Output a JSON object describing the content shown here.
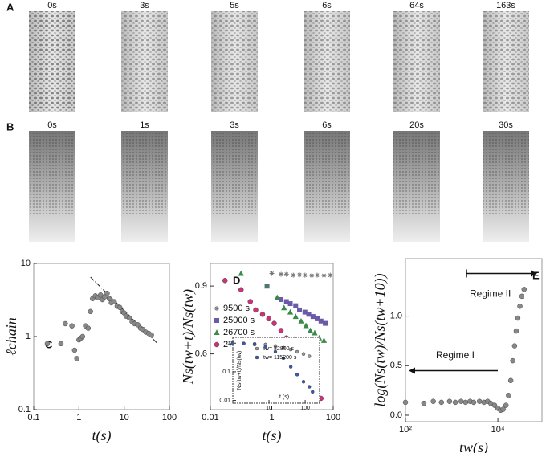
{
  "image_rows": [
    {
      "label": "A",
      "frames": [
        "0s",
        "3s",
        "5s",
        "6s",
        "64s",
        "163s"
      ]
    },
    {
      "label": "B",
      "frames": [
        "0s",
        "1s",
        "3s",
        "6s",
        "20s",
        "30s"
      ]
    }
  ],
  "chart_data": [
    {
      "type": "scatter",
      "panel": "C",
      "xlabel": "t(s)",
      "ylabel": "ℓchain",
      "xscale": "log",
      "yscale": "log",
      "xlim": [
        0.1,
        100
      ],
      "ylim": [
        0.1,
        10
      ],
      "xticks": [
        0.1,
        1,
        10,
        100
      ],
      "yticks": [
        0.1,
        1,
        10
      ],
      "series": [
        {
          "color": "#888888",
          "marker": "circle",
          "x": [
            0.2,
            0.4,
            0.5,
            0.7,
            0.8,
            0.9,
            1.0,
            1.1,
            1.2,
            1.4,
            1.6,
            1.8,
            2.0,
            2.3,
            2.6,
            3.0,
            3.3,
            3.7,
            4.2,
            4.7,
            5.2,
            6.0,
            7.0,
            8.0,
            9.0,
            10,
            11,
            13,
            15,
            17,
            20,
            23,
            26,
            30,
            35,
            40
          ],
          "values": [
            0.8,
            0.8,
            1.5,
            1.4,
            0.65,
            0.5,
            0.9,
            0.95,
            1.0,
            1.4,
            1.3,
            2.2,
            3.3,
            3.6,
            3.4,
            3.7,
            3.2,
            3.5,
            3.9,
            3.3,
            2.9,
            3.0,
            2.6,
            2.5,
            2.2,
            2.1,
            1.9,
            1.8,
            1.6,
            1.5,
            1.45,
            1.3,
            1.25,
            1.15,
            1.1,
            1.05
          ]
        }
      ],
      "fit": {
        "x": [
          1.8,
          55
        ],
        "values": [
          6.5,
          0.8
        ]
      }
    },
    {
      "type": "scatter",
      "panel": "D",
      "xlabel": "t(s)",
      "ylabel": "Ns(tw+t)/Ns(tw)",
      "xscale": "log",
      "yscale": "log",
      "xlim": [
        0.01,
        100
      ],
      "ylim": [
        0.43,
        1.03
      ],
      "xticks": [
        0.01,
        1,
        100
      ],
      "yticks": [
        0.6,
        0.9
      ],
      "legend": "left",
      "series": [
        {
          "name": "9500   s",
          "color": "#777777",
          "marker": "star",
          "x": [
            1,
            2,
            3,
            5,
            8,
            12,
            20,
            30,
            50,
            80
          ],
          "values": [
            0.97,
            0.965,
            0.965,
            0.96,
            0.962,
            0.96,
            0.958,
            0.96,
            0.958,
            0.96
          ]
        },
        {
          "name": "25000  s",
          "color": "#6a5aa8",
          "marker": "square",
          "x": [
            0.7,
            2,
            3,
            4,
            6,
            8,
            12,
            16,
            22,
            30,
            40,
            55
          ],
          "values": [
            0.9,
            0.83,
            0.82,
            0.81,
            0.8,
            0.78,
            0.77,
            0.76,
            0.75,
            0.74,
            0.73,
            0.72
          ]
        },
        {
          "name": "26700  s",
          "color": "#3a8a4a",
          "marker": "triangle",
          "x": [
            0.1,
            0.7,
            1.5,
            2.5,
            4,
            6,
            9,
            13,
            18,
            25,
            35,
            50
          ],
          "values": [
            0.97,
            0.9,
            0.84,
            0.79,
            0.77,
            0.75,
            0.73,
            0.71,
            0.69,
            0.68,
            0.66,
            0.65
          ]
        },
        {
          "name": "27900  s",
          "color": "#d0307a",
          "marker": "circle",
          "x": [
            0.03,
            0.1,
            0.2,
            0.3,
            0.5,
            0.8,
            1.2,
            2,
            3,
            5,
            7,
            10,
            14,
            20,
            28,
            40
          ],
          "values": [
            0.93,
            0.88,
            0.82,
            0.78,
            0.76,
            0.74,
            0.72,
            0.69,
            0.66,
            0.62,
            0.59,
            0.56,
            0.53,
            0.5,
            0.48,
            0.46
          ]
        }
      ]
    },
    {
      "type": "scatter",
      "inset": true,
      "xlabel": "t (s)",
      "ylabel": "Ns(tw+t)/Ns(tw)",
      "xscale": "log",
      "yscale": "log",
      "xlim": [
        1,
        250
      ],
      "ylim": [
        0.008,
        1.6
      ],
      "xticks": [
        10,
        100
      ],
      "yticks": [
        1,
        0.1,
        0.01
      ],
      "legend": "center",
      "series": [
        {
          "name": "tw= 82800 s",
          "color": "#999999",
          "marker": "circle",
          "x": [
            1,
            2,
            4,
            8,
            15,
            25,
            40,
            60,
            90,
            130
          ],
          "values": [
            1,
            0.98,
            0.95,
            0.9,
            0.8,
            0.7,
            0.6,
            0.5,
            0.42,
            0.35
          ]
        },
        {
          "name": "tw= 115200 s",
          "color": "#3a5ab8",
          "marker": "circle",
          "x": [
            1,
            2,
            4,
            8,
            15,
            25,
            40,
            60,
            90,
            130,
            160
          ],
          "values": [
            1,
            0.97,
            0.9,
            0.75,
            0.5,
            0.3,
            0.15,
            0.08,
            0.045,
            0.03,
            0.02
          ]
        }
      ]
    },
    {
      "type": "scatter",
      "panel": "E",
      "xlabel": "tw(s)",
      "ylabel": "log(Ns(tw)/Ns(tw+10))",
      "xscale": "log",
      "xlim": [
        100,
        90000
      ],
      "ylim": [
        -0.065,
        1.58
      ],
      "xticks": [
        {
          "value": 100,
          "label": "10²"
        },
        {
          "value": 10000,
          "label": "10⁴"
        }
      ],
      "yticks": [
        {
          "value": 0,
          "label": "0.0"
        },
        {
          "value": 0.5,
          "label": "0.5"
        },
        {
          "value": 1,
          "label": "1.0"
        }
      ],
      "annotations": [
        "Regime I",
        "Regime II"
      ],
      "series": [
        {
          "color": "#888888",
          "marker": "circle",
          "x": [
            100,
            250,
            400,
            600,
            900,
            1200,
            1600,
            2000,
            2500,
            3000,
            4000,
            5000,
            6000,
            7000,
            8500,
            10000,
            11500,
            13000,
            15000,
            17000,
            19000,
            21000,
            23000,
            25000,
            27000,
            30000,
            33000,
            37000
          ],
          "values": [
            0.13,
            0.12,
            0.14,
            0.13,
            0.14,
            0.13,
            0.14,
            0.13,
            0.14,
            0.13,
            0.14,
            0.13,
            0.14,
            0.12,
            0.1,
            0.07,
            0.05,
            0.06,
            0.1,
            0.2,
            0.35,
            0.55,
            0.7,
            0.85,
            0.98,
            1.1,
            1.2,
            1.27
          ]
        }
      ]
    }
  ]
}
